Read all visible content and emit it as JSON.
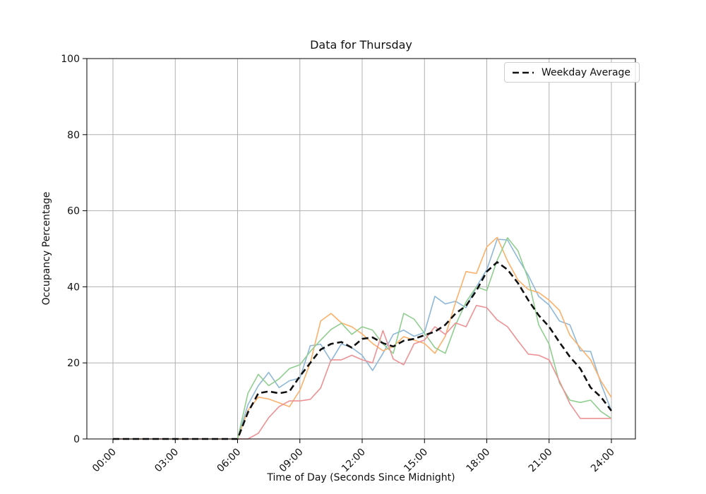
{
  "figure": {
    "title": "Data for Thursday",
    "background": "#ffffff"
  },
  "chart_data": {
    "type": "line",
    "title": "Data for Thursday",
    "xlabel": "Time of Day (Seconds Since Midnight)",
    "ylabel": "Occupancy Percentage",
    "ylim": [
      0,
      100
    ],
    "xlim_seconds": [
      0,
      86400
    ],
    "grid": true,
    "grid_color": "#b0b0b0",
    "x_tick_seconds": [
      0,
      10800,
      21600,
      32400,
      43200,
      54000,
      64800,
      75600,
      86400
    ],
    "x_tick_labels": [
      "00:00",
      "03:00",
      "06:00",
      "09:00",
      "12:00",
      "15:00",
      "18:00",
      "21:00",
      "24:00"
    ],
    "y_ticks": [
      0,
      20,
      40,
      60,
      80,
      100
    ],
    "legend": {
      "position": "upper-right",
      "label": "Weekday Average",
      "line_style": "dashed",
      "line_color": "#111111"
    },
    "sample_step_seconds": 1800,
    "series": [
      {
        "name": "weekday-blue",
        "base_color": "#1f77b4",
        "render_color": "#8fb8d8",
        "style": "solid",
        "width": 1.6,
        "values": [
          0,
          0,
          0,
          0,
          0,
          0,
          0,
          0,
          0,
          0,
          0,
          0,
          0,
          9,
          14,
          17.5,
          13.5,
          15.3,
          16,
          24.5,
          24.9,
          20.5,
          25,
          24,
          22,
          18,
          22.5,
          27.5,
          28.6,
          27,
          28,
          37.5,
          35.5,
          36.2,
          34.5,
          40,
          44.5,
          52.5,
          52.3,
          47.5,
          43,
          37.5,
          35.2,
          31,
          30,
          23.2,
          23,
          14.5,
          7.4
        ]
      },
      {
        "name": "weekday-orange",
        "base_color": "#ff7f0e",
        "render_color": "#fdb069",
        "style": "solid",
        "width": 1.6,
        "values": [
          0,
          0,
          0,
          0,
          0,
          0,
          0,
          0,
          0,
          0,
          0,
          0,
          0,
          7.5,
          11,
          10.5,
          9.5,
          8.5,
          12.8,
          20,
          31,
          33,
          30.5,
          29.5,
          27.6,
          25.1,
          23.2,
          24.3,
          26.9,
          26,
          25.1,
          22.5,
          27,
          36,
          44,
          43.5,
          50.5,
          53,
          46.8,
          41.8,
          39.3,
          38.5,
          36.5,
          33.8,
          27.3,
          24,
          20.8,
          15.2,
          10.9
        ]
      },
      {
        "name": "weekday-green",
        "base_color": "#2ca02c",
        "render_color": "#90ce90",
        "style": "solid",
        "width": 1.6,
        "values": [
          0,
          0,
          0,
          0,
          0,
          0,
          0,
          0,
          0,
          0,
          0,
          0,
          0,
          12,
          17,
          14,
          15.8,
          18.5,
          19.5,
          23,
          26,
          28.8,
          30.4,
          27.5,
          29.5,
          28.6,
          25,
          22.5,
          33,
          31.5,
          27.8,
          24,
          22.5,
          30,
          36,
          40,
          39,
          47,
          52.9,
          49.5,
          42,
          30,
          24.9,
          14.7,
          10.2,
          9.6,
          10.2,
          7.2,
          5.4
        ]
      },
      {
        "name": "weekday-red",
        "base_color": "#d62728",
        "render_color": "#ec9294",
        "style": "solid",
        "width": 1.6,
        "values": [
          0,
          0,
          0,
          0,
          0,
          0,
          0,
          0,
          0,
          0,
          0,
          0,
          0,
          0,
          1.5,
          5.6,
          8.5,
          10,
          10,
          10.4,
          13.4,
          20.8,
          20.8,
          22,
          20.8,
          20,
          28.5,
          21,
          19.5,
          25,
          26,
          29.5,
          27.5,
          30.5,
          29.5,
          35.1,
          34.5,
          31.3,
          29.5,
          25.8,
          22.3,
          22,
          20.8,
          15.2,
          9.3,
          5.4,
          5.4,
          5.4,
          5.4
        ]
      },
      {
        "name": "weekday-average",
        "base_color": "#000000",
        "render_color": "#111111",
        "style": "dashed",
        "width": 2.6,
        "values": [
          0,
          0,
          0,
          0,
          0,
          0,
          0,
          0,
          0,
          0,
          0,
          0,
          0,
          7,
          12,
          12.5,
          12,
          12.5,
          16.5,
          20,
          23.5,
          25,
          25.5,
          24,
          26.3,
          26.7,
          25.2,
          24.3,
          25.8,
          26.3,
          27.3,
          28.2,
          30,
          33,
          35,
          39,
          44,
          46.5,
          44.5,
          41,
          36.5,
          32.5,
          29.5,
          25.4,
          21.6,
          18.5,
          13.5,
          11,
          7.4
        ]
      }
    ]
  }
}
